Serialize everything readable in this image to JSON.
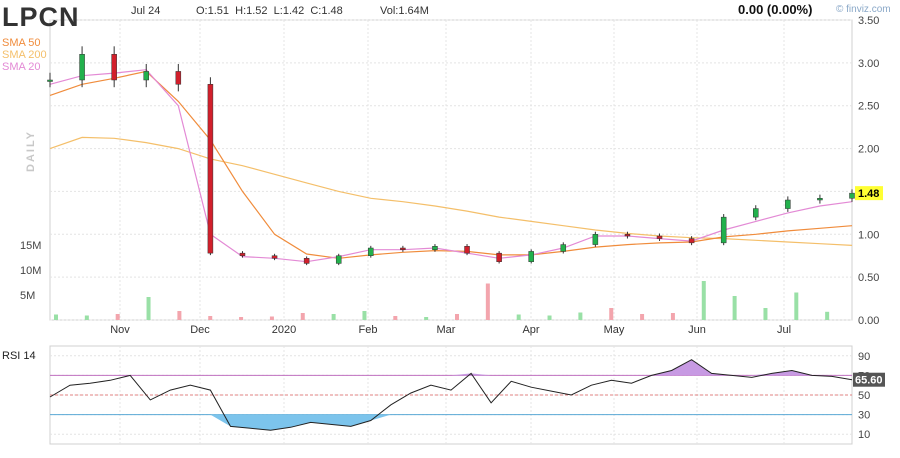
{
  "header": {
    "ticker": "LPCN",
    "date": "Jul 24",
    "ohlc": "O:1.51  H:1.52  L:1.42  C:1.48",
    "volume": "Vol:1.64M",
    "change": "0.00 (0.00%)",
    "brand": "© finviz.com"
  },
  "colors": {
    "up": "#22b14c",
    "down": "#d21f2b",
    "vol_up": "#99e0a6",
    "vol_down": "#f3a5ad",
    "sma50": "#f08c3c",
    "sma200": "#f4bf6a",
    "sma20": "#e38ad5",
    "rsi_over": "#c79ae3",
    "rsi_under": "#7cc4ec"
  },
  "chart_data": [
    {
      "type": "candlestick",
      "interval_label": "DAILY",
      "ylim": [
        0,
        3.5
      ],
      "y_ticks": [
        "0.00",
        "0.50",
        "1.00",
        "1.50",
        "2.00",
        "2.50",
        "3.00",
        "3.50"
      ],
      "x_labels": [
        "Nov",
        "Dec",
        "2020",
        "Feb",
        "Mar",
        "Apr",
        "May",
        "Jun",
        "Jul"
      ],
      "last_price_label": "1.48",
      "legend": [
        "SMA 50",
        "SMA 200",
        "SMA 20"
      ],
      "volume_ticks": [
        "15M",
        "10M",
        "5M"
      ],
      "price": [
        2.8,
        3.1,
        2.8,
        2.9,
        2.75,
        0.78,
        0.75,
        0.72,
        0.66,
        0.75,
        0.84,
        0.82,
        0.86,
        0.78,
        0.68,
        0.8,
        0.88,
        1.0,
        0.98,
        0.95,
        0.9,
        1.2,
        1.3,
        1.4,
        1.42,
        1.48
      ],
      "sma20": [
        2.75,
        2.85,
        2.88,
        2.92,
        2.5,
        1.0,
        0.74,
        0.72,
        0.68,
        0.74,
        0.82,
        0.82,
        0.84,
        0.78,
        0.72,
        0.76,
        0.84,
        0.98,
        0.98,
        0.95,
        0.92,
        1.05,
        1.15,
        1.25,
        1.33,
        1.38
      ],
      "sma50": [
        2.62,
        2.75,
        2.82,
        2.9,
        2.55,
        2.1,
        1.5,
        1.0,
        0.77,
        0.72,
        0.76,
        0.79,
        0.81,
        0.8,
        0.76,
        0.76,
        0.8,
        0.85,
        0.88,
        0.9,
        0.91,
        0.97,
        1.0,
        1.04,
        1.07,
        1.1
      ],
      "sma200": [
        2.0,
        2.13,
        2.12,
        2.07,
        2.0,
        1.88,
        1.8,
        1.7,
        1.6,
        1.5,
        1.42,
        1.38,
        1.33,
        1.27,
        1.2,
        1.15,
        1.1,
        1.05,
        1.01,
        0.98,
        0.96,
        0.95,
        0.93,
        0.91,
        0.89,
        0.87
      ],
      "volume_m": [
        1.1,
        0.9,
        1.2,
        4.6,
        1.8,
        0.8,
        0.6,
        0.7,
        1.4,
        1.2,
        1.8,
        0.8,
        0.6,
        1.2,
        7.3,
        1.1,
        0.9,
        1.5,
        2.4,
        1.2,
        1.4,
        7.8,
        4.8,
        2.4,
        5.5,
        1.64
      ]
    },
    {
      "type": "line",
      "title": "RSI 14",
      "ylim": [
        0,
        100
      ],
      "y_ticks": [
        "10",
        "30",
        "50",
        "70",
        "90"
      ],
      "last_value_label": "65.60",
      "values": [
        48,
        60,
        62,
        65,
        70,
        45,
        55,
        60,
        55,
        18,
        16,
        14,
        17,
        22,
        20,
        18,
        24,
        40,
        52,
        60,
        55,
        72,
        42,
        64,
        58,
        54,
        50,
        60,
        65,
        62,
        70,
        75,
        86,
        72,
        70,
        68,
        72,
        75,
        70,
        69,
        65.6
      ]
    }
  ]
}
